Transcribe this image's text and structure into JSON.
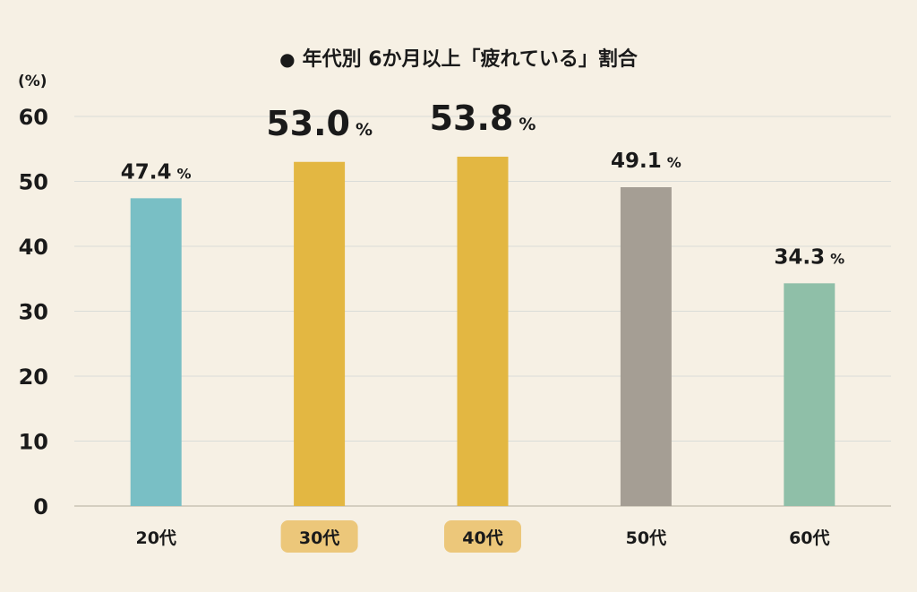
{
  "chart_data": {
    "type": "bar",
    "title_bullet": "●",
    "title": "年代別 6か月以上「疲れている」割合",
    "ylabel": "(%)",
    "ylim": [
      0,
      60
    ],
    "yticks": [
      0,
      10,
      20,
      30,
      40,
      50,
      60
    ],
    "categories": [
      "20代",
      "30代",
      "40代",
      "50代",
      "60代"
    ],
    "values": [
      47.4,
      53.0,
      53.8,
      49.1,
      34.3
    ],
    "value_labels": [
      "47.4",
      "53.0",
      "53.8",
      "49.1",
      "34.3"
    ],
    "unit": "%",
    "highlighted": [
      false,
      true,
      true,
      false,
      false
    ],
    "colors": [
      "#79bfc5",
      "#e3b742",
      "#e3b742",
      "#a59e94",
      "#8fbfa8"
    ],
    "highlight_badge_color": "#ecc77a",
    "background": "#f6f0e4",
    "gridlines": true
  }
}
